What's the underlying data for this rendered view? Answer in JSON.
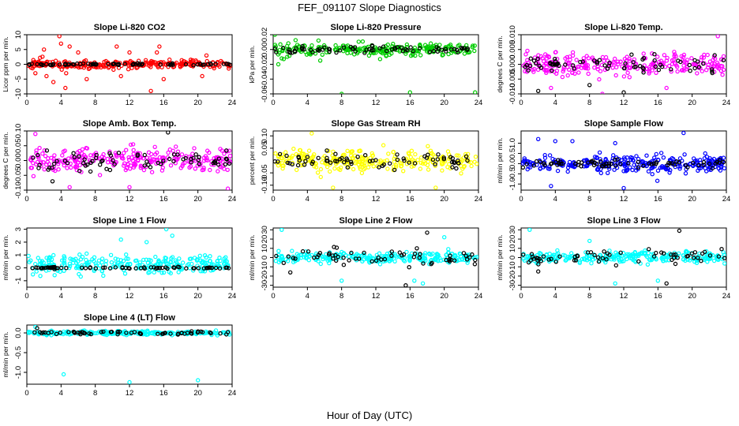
{
  "figure": {
    "title": "FEF_091107  Slope Diagnostics",
    "xlabel": "Hour of Day (UTC)"
  },
  "chart_data": [
    {
      "type": "scatter",
      "title": "Slope Li-820 CO2",
      "xlabel": "",
      "ylabel": "Licor ppm per min.",
      "xlim": [
        0,
        24
      ],
      "ylim": [
        -10,
        10
      ],
      "xticks": [
        0,
        4,
        8,
        12,
        16,
        20,
        24
      ],
      "yticks": [
        -10,
        -5,
        0,
        5,
        10
      ],
      "colors": [
        "#ff0000",
        "#000000"
      ],
      "series": [
        {
          "values_desc": "dense scatter",
          "color": "#ff0000",
          "center": 0,
          "spread": 1.2,
          "count": 260,
          "seed": 11,
          "outliers": [
            [
              2.0,
              5
            ],
            [
              3.8,
              9.5
            ],
            [
              4.0,
              7
            ],
            [
              4.5,
              -8
            ],
            [
              2.3,
              -4
            ],
            [
              5.0,
              6
            ],
            [
              6.0,
              4
            ],
            [
              7.0,
              -5
            ],
            [
              10.5,
              6
            ],
            [
              11.0,
              -4
            ],
            [
              12.0,
              4
            ],
            [
              14.5,
              -9
            ],
            [
              15.2,
              4
            ],
            [
              15.5,
              6
            ],
            [
              16.0,
              -5
            ],
            [
              20.5,
              -4
            ],
            [
              21.0,
              3
            ],
            [
              1.0,
              -3
            ],
            [
              3.1,
              -6
            ],
            [
              4.6,
              -3
            ]
          ]
        },
        {
          "color": "#000000",
          "center": 0,
          "spread": 0.3,
          "count": 70,
          "seed": 12,
          "outliers": []
        }
      ]
    },
    {
      "type": "scatter",
      "title": "Slope Li-820 Pressure",
      "xlabel": "",
      "ylabel": "kPa per min.",
      "xlim": [
        0,
        24
      ],
      "ylim": [
        -0.06,
        0.02
      ],
      "xticks": [
        0,
        4,
        8,
        12,
        16,
        20,
        24
      ],
      "yticks": [
        -0.06,
        -0.04,
        -0.02,
        0.0,
        0.02
      ],
      "series": [
        {
          "color": "#00cc00",
          "center": 0,
          "spread": 0.007,
          "count": 240,
          "seed": 21,
          "outliers": [
            [
              0.2,
              0.02
            ],
            [
              0.6,
              -0.02
            ],
            [
              8.0,
              -0.06
            ],
            [
              16.0,
              -0.058
            ],
            [
              23.6,
              -0.058
            ],
            [
              1.0,
              -0.012
            ],
            [
              5.5,
              -0.015
            ],
            [
              12.5,
              -0.013
            ]
          ]
        },
        {
          "color": "#000000",
          "center": 0,
          "spread": 0.004,
          "count": 70,
          "seed": 22,
          "outliers": []
        }
      ]
    },
    {
      "type": "scatter",
      "title": "Slope Li-820 Temp.",
      "xlabel": "",
      "ylabel": "degrees C per min.",
      "xlim": [
        0,
        24
      ],
      "ylim": [
        -0.01,
        0.01
      ],
      "xticks": [
        0,
        4,
        8,
        12,
        16,
        20,
        24
      ],
      "yticks": [
        -0.01,
        -0.005,
        0.0,
        0.005,
        0.01
      ],
      "series": [
        {
          "color": "#ff00ff",
          "center": 0,
          "spread": 0.0032,
          "count": 260,
          "seed": 31,
          "outliers": [
            [
              9.5,
              -0.01
            ],
            [
              23.0,
              0.0095
            ],
            [
              3.5,
              -0.008
            ],
            [
              17.0,
              -0.008
            ]
          ]
        },
        {
          "color": "#000000",
          "center": 0,
          "spread": 0.0028,
          "count": 70,
          "seed": 32,
          "outliers": [
            [
              2.0,
              -0.009
            ],
            [
              12.0,
              -0.0095
            ],
            [
              8.0,
              -0.007
            ]
          ]
        }
      ]
    },
    {
      "type": "scatter",
      "title": "Slope Amb. Box Temp.",
      "xlabel": "",
      "ylabel": "degrees C per min.",
      "xlim": [
        0,
        24
      ],
      "ylim": [
        -0.1,
        0.1
      ],
      "xticks": [
        0,
        4,
        8,
        12,
        16,
        20,
        24
      ],
      "yticks": [
        -0.1,
        -0.05,
        0.0,
        0.05,
        0.1
      ],
      "series": [
        {
          "color": "#ff00ff",
          "center": 0,
          "spread": 0.035,
          "count": 260,
          "seed": 41,
          "outliers": [
            [
              1.0,
              0.09
            ],
            [
              5.0,
              -0.09
            ],
            [
              12.0,
              -0.09
            ],
            [
              23.5,
              -0.095
            ]
          ]
        },
        {
          "color": "#000000",
          "center": 0,
          "spread": 0.03,
          "count": 70,
          "seed": 42,
          "outliers": [
            [
              16.5,
              0.095
            ],
            [
              3.0,
              -0.07
            ]
          ]
        }
      ]
    },
    {
      "type": "scatter",
      "title": "Slope Gas Stream RH",
      "xlabel": "",
      "ylabel": "percent per min.",
      "xlim": [
        0,
        24
      ],
      "ylim": [
        -0.12,
        0.12
      ],
      "xticks": [
        0,
        4,
        8,
        12,
        16,
        20,
        24
      ],
      "yticks": [
        -0.1,
        -0.05,
        0.05,
        0.1
      ],
      "series": [
        {
          "color": "#ffff00",
          "center": 0,
          "spread": 0.035,
          "count": 260,
          "seed": 51,
          "outliers": [
            [
              4.5,
              0.11
            ],
            [
              7.0,
              -0.11
            ],
            [
              19.0,
              -0.11
            ]
          ]
        },
        {
          "color": "#000000",
          "center": 0,
          "spread": 0.025,
          "count": 70,
          "seed": 52,
          "outliers": []
        }
      ]
    },
    {
      "type": "scatter",
      "title": "Slope Sample Flow",
      "xlabel": "",
      "ylabel": "ml/min per min.",
      "xlim": [
        0,
        24
      ],
      "ylim": [
        -1.3,
        1.6
      ],
      "xticks": [
        0,
        4,
        8,
        12,
        16,
        20,
        24
      ],
      "yticks": [
        -1.0,
        -0.5,
        0.0,
        0.5,
        1.0
      ],
      "series": [
        {
          "color": "#0000ff",
          "center": 0,
          "spread": 0.35,
          "count": 280,
          "seed": 61,
          "outliers": [
            [
              2.0,
              1.2
            ],
            [
              4.0,
              1.1
            ],
            [
              6.0,
              1.1
            ],
            [
              11.0,
              1.0
            ],
            [
              19.0,
              1.5
            ],
            [
              12.0,
              -1.2
            ],
            [
              3.5,
              -1.1
            ]
          ]
        },
        {
          "color": "#000000",
          "center": 0,
          "spread": 0.15,
          "count": 70,
          "seed": 62,
          "outliers": []
        }
      ]
    },
    {
      "type": "scatter",
      "title": "Slope Line 1 Flow",
      "xlabel": "",
      "ylabel": "ml/min per min.",
      "xlim": [
        0,
        24
      ],
      "ylim": [
        -1.5,
        3.1
      ],
      "xticks": [
        0,
        4,
        8,
        12,
        16,
        20,
        24
      ],
      "yticks": [
        -1,
        0,
        1,
        2,
        3
      ],
      "series": [
        {
          "color": "#00ffff",
          "center": 0.3,
          "spread": 0.6,
          "count": 260,
          "seed": 71,
          "outliers": [
            [
              16.3,
              3.0
            ],
            [
              17.0,
              2.5
            ],
            [
              11.0,
              2.2
            ],
            [
              14.0,
              2.0
            ]
          ]
        },
        {
          "color": "#000000",
          "center": 0,
          "spread": 0.05,
          "count": 70,
          "seed": 72,
          "outliers": []
        }
      ]
    },
    {
      "type": "scatter",
      "title": "Slope Line 2 Flow",
      "xlabel": "",
      "ylabel": "ml/min per min.",
      "xlim": [
        0,
        24
      ],
      "ylim": [
        -32,
        32
      ],
      "xticks": [
        0,
        4,
        8,
        12,
        16,
        20,
        24
      ],
      "yticks": [
        -30,
        -20,
        -10,
        0,
        10,
        20,
        30
      ],
      "series": [
        {
          "color": "#00ffff",
          "center": 0,
          "spread": 5,
          "count": 260,
          "seed": 81,
          "outliers": [
            [
              1.0,
              30
            ],
            [
              8.0,
              -25
            ],
            [
              16.5,
              -25
            ],
            [
              17.5,
              -28
            ],
            [
              20.0,
              22
            ]
          ]
        },
        {
          "color": "#000000",
          "center": 0,
          "spread": 7,
          "count": 60,
          "seed": 82,
          "outliers": [
            [
              18.0,
              27
            ],
            [
              15.5,
              -30
            ],
            [
              2.0,
              -16
            ]
          ]
        }
      ]
    },
    {
      "type": "scatter",
      "title": "Slope Line 3 Flow",
      "xlabel": "",
      "ylabel": "ml/min per min.",
      "xlim": [
        0,
        24
      ],
      "ylim": [
        -32,
        32
      ],
      "xticks": [
        0,
        4,
        8,
        12,
        16,
        20,
        24
      ],
      "yticks": [
        -30,
        -20,
        -10,
        0,
        10,
        20,
        30
      ],
      "series": [
        {
          "color": "#00ffff",
          "center": 0,
          "spread": 5,
          "count": 260,
          "seed": 91,
          "outliers": [
            [
              1.0,
              30
            ],
            [
              16.0,
              -25
            ],
            [
              11.0,
              -28
            ],
            [
              8.0,
              18
            ]
          ]
        },
        {
          "color": "#000000",
          "center": 0,
          "spread": 7,
          "count": 60,
          "seed": 92,
          "outliers": [
            [
              18.5,
              29
            ],
            [
              17.0,
              -28
            ],
            [
              2.0,
              -15
            ]
          ]
        }
      ]
    },
    {
      "type": "scatter",
      "title": "Slope Line 4 (LT) Flow",
      "xlabel": "",
      "ylabel": "ml/min per min.",
      "xlim": [
        0,
        24
      ],
      "ylim": [
        -1.3,
        0.2
      ],
      "xticks": [
        0,
        4,
        8,
        12,
        16,
        20,
        24
      ],
      "yticks": [
        -1.0,
        -0.5,
        0.0
      ],
      "series": [
        {
          "color": "#00ffff",
          "center": 0,
          "spread": 0.04,
          "count": 240,
          "seed": 101,
          "outliers": [
            [
              4.3,
              -1.05
            ],
            [
              12.0,
              -1.25
            ],
            [
              20.0,
              -1.2
            ],
            [
              1.0,
              0.15
            ]
          ]
        },
        {
          "color": "#000000",
          "center": 0,
          "spread": 0.03,
          "count": 60,
          "seed": 102,
          "outliers": [
            [
              1.2,
              0.12
            ]
          ]
        }
      ]
    }
  ]
}
